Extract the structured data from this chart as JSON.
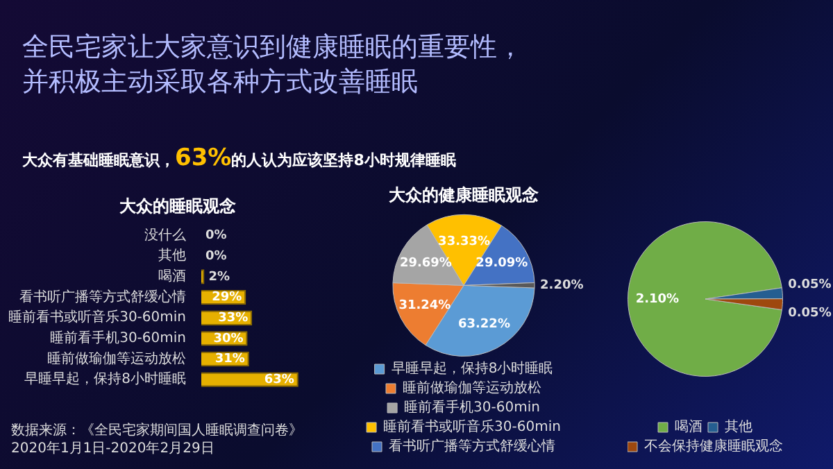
{
  "chart_data": [
    {
      "type": "other",
      "title": "全民宅家让大家意识到健康睡眠的重要性，并积极主动采取各种方式改善睡眠",
      "subtitle": "大众有基础睡眠意识，63%的人认为应该坚持8小时规律睡眠",
      "annotations": [
        "数据来源：《全民宅家期间国人睡眠调查问卷》",
        "2020年1月1日-2020年2月29日"
      ]
    },
    {
      "type": "bar",
      "orientation": "horizontal",
      "title": "大众的睡眠观念",
      "categories": [
        "没什么",
        "其他",
        "喝酒",
        "看书听广播等方式舒缓心情",
        "睡前看书或听音乐30-60min",
        "睡前看手机30-60min",
        "睡前做瑜伽等运动放松",
        "早睡早起，保持8小时睡眠"
      ],
      "values": [
        0,
        0,
        2,
        29,
        33,
        30,
        31,
        63
      ],
      "value_labels": [
        "0%",
        "0%",
        "2%",
        "29%",
        "33%",
        "30%",
        "31%",
        "63%"
      ],
      "color": "#e6b000",
      "tick_labels": "y",
      "legend": false
    },
    {
      "type": "pie",
      "title": "大众的健康睡眠观念",
      "categories": [
        "早睡早起，保持8小时睡眠",
        "睡前做瑜伽等运动放松",
        "睡前看手机30-60min",
        "睡前看书或听音乐30-60min",
        "看书听广播等方式舒缓心情",
        null
      ],
      "values": [
        63.22,
        31.24,
        29.69,
        33.33,
        29.09,
        2.2
      ],
      "value_labels": [
        "63.22%",
        "31.24%",
        "29.69%",
        "33.33%",
        "29.09%",
        "2.20%"
      ],
      "colors": [
        "#5b9bd5",
        "#ed7d31",
        "#a5a5a5",
        "#ffc000",
        "#4472c4",
        "#595959"
      ],
      "legend": "bottom"
    },
    {
      "type": "pie",
      "categories": [
        "喝酒",
        "其他",
        "不会保持健康睡眠观念"
      ],
      "values": [
        2.1,
        0.05,
        0.05
      ],
      "value_labels": [
        "2.10%",
        "0.05%",
        "0.05%"
      ],
      "colors": [
        "#70ad47",
        "#255e91",
        "#9e480e"
      ],
      "legend": "bottom"
    }
  ]
}
